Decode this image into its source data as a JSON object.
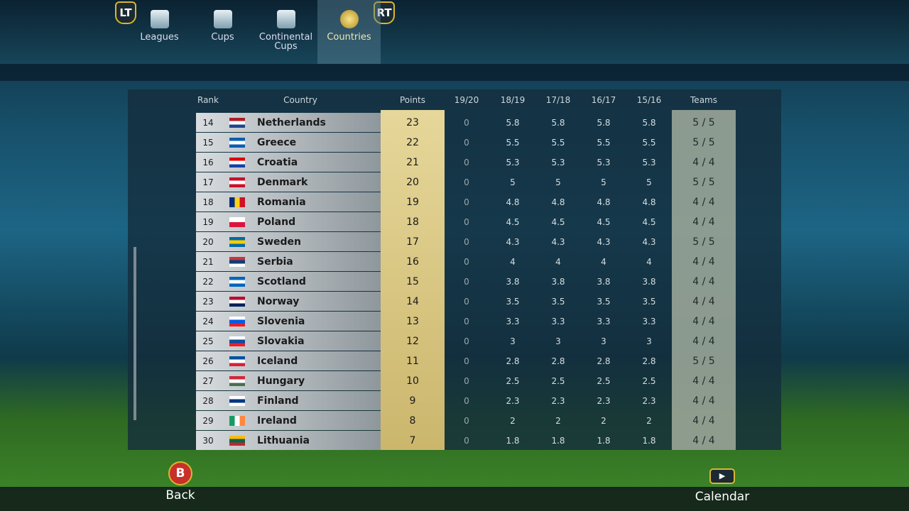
{
  "tabs": [
    {
      "label": "Leagues"
    },
    {
      "label": "Cups"
    },
    {
      "label": "Continental Cups"
    },
    {
      "label": "Countries"
    }
  ],
  "bumpers": {
    "left": "LT",
    "right": "RT"
  },
  "table": {
    "headers": [
      "Rank",
      "Country",
      "Points",
      "19/20",
      "18/19",
      "17/18",
      "16/17",
      "15/16",
      "Teams"
    ],
    "rows": [
      [
        14,
        "Netherlands",
        23,
        0,
        5.8,
        5.8,
        5.8,
        5.8,
        "5 / 5"
      ],
      [
        15,
        "Greece",
        22,
        0,
        5.5,
        5.5,
        5.5,
        5.5,
        "5 / 5"
      ],
      [
        16,
        "Croatia",
        21,
        0,
        5.3,
        5.3,
        5.3,
        5.3,
        "4 / 4"
      ],
      [
        17,
        "Denmark",
        20,
        0,
        5,
        5,
        5,
        5,
        "5 / 5"
      ],
      [
        18,
        "Romania",
        19,
        0,
        4.8,
        4.8,
        4.8,
        4.8,
        "4 / 4"
      ],
      [
        19,
        "Poland",
        18,
        0,
        4.5,
        4.5,
        4.5,
        4.5,
        "4 / 4"
      ],
      [
        20,
        "Sweden",
        17,
        0,
        4.3,
        4.3,
        4.3,
        4.3,
        "5 / 5"
      ],
      [
        21,
        "Serbia",
        16,
        0,
        4,
        4,
        4,
        4,
        "4 / 4"
      ],
      [
        22,
        "Scotland",
        15,
        0,
        3.8,
        3.8,
        3.8,
        3.8,
        "4 / 4"
      ],
      [
        23,
        "Norway",
        14,
        0,
        3.5,
        3.5,
        3.5,
        3.5,
        "4 / 4"
      ],
      [
        24,
        "Slovenia",
        13,
        0,
        3.3,
        3.3,
        3.3,
        3.3,
        "4 / 4"
      ],
      [
        25,
        "Slovakia",
        12,
        0,
        3,
        3,
        3,
        3,
        "4 / 4"
      ],
      [
        26,
        "Iceland",
        11,
        0,
        2.8,
        2.8,
        2.8,
        2.8,
        "5 / 5"
      ],
      [
        27,
        "Hungary",
        10,
        0,
        2.5,
        2.5,
        2.5,
        2.5,
        "4 / 4"
      ],
      [
        28,
        "Finland",
        9,
        0,
        2.3,
        2.3,
        2.3,
        2.3,
        "4 / 4"
      ],
      [
        29,
        "Ireland",
        8,
        0,
        2,
        2,
        2,
        2,
        "4 / 4"
      ],
      [
        30,
        "Lithuania",
        7,
        0,
        1.8,
        1.8,
        1.8,
        1.8,
        "4 / 4"
      ]
    ]
  },
  "buttons": {
    "back": {
      "key": "B",
      "label": "Back"
    },
    "calendar": {
      "label": "Calendar"
    }
  }
}
